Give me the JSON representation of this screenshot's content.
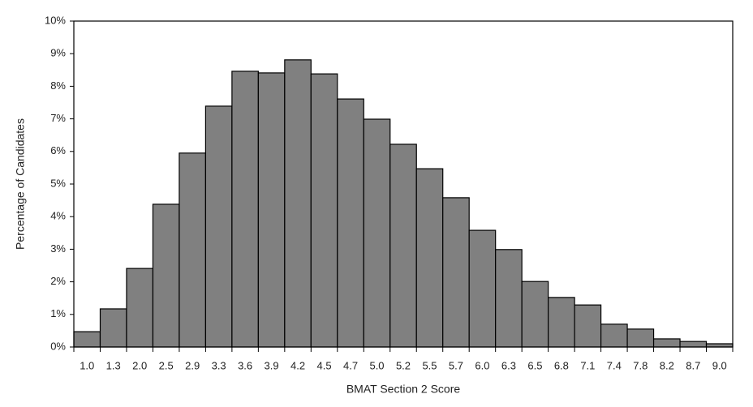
{
  "chart_data": {
    "type": "bar",
    "x_label": "BMAT Section 2 Score",
    "y_label": "Percentage of Candidates",
    "categories": [
      "1.0",
      "1.3",
      "2.0",
      "2.5",
      "2.9",
      "3.3",
      "3.6",
      "3.9",
      "4.2",
      "4.5",
      "4.7",
      "5.0",
      "5.2",
      "5.5",
      "5.7",
      "6.0",
      "6.3",
      "6.5",
      "6.8",
      "7.1",
      "7.4",
      "7.8",
      "8.2",
      "8.7",
      "9.0"
    ],
    "values": [
      0.47,
      1.17,
      2.41,
      4.38,
      5.95,
      7.39,
      8.46,
      8.41,
      8.81,
      8.38,
      7.61,
      6.99,
      6.22,
      5.47,
      4.58,
      3.58,
      2.99,
      2.01,
      1.52,
      1.29,
      0.7,
      0.55,
      0.25,
      0.17,
      0.1
    ],
    "color": "#808080",
    "ylim": [
      0,
      10
    ],
    "yticks": [
      {
        "value": 0,
        "label": "0%"
      },
      {
        "value": 1,
        "label": "1%"
      },
      {
        "value": 2,
        "label": "2%"
      },
      {
        "value": 3,
        "label": "3%"
      },
      {
        "value": 4,
        "label": "4%"
      },
      {
        "value": 5,
        "label": "5%"
      },
      {
        "value": 6,
        "label": "6%"
      },
      {
        "value": 7,
        "label": "7%"
      },
      {
        "value": 8,
        "label": "8%"
      },
      {
        "value": 9,
        "label": "9%"
      },
      {
        "value": 10,
        "label": "10%"
      }
    ],
    "grid": false
  }
}
